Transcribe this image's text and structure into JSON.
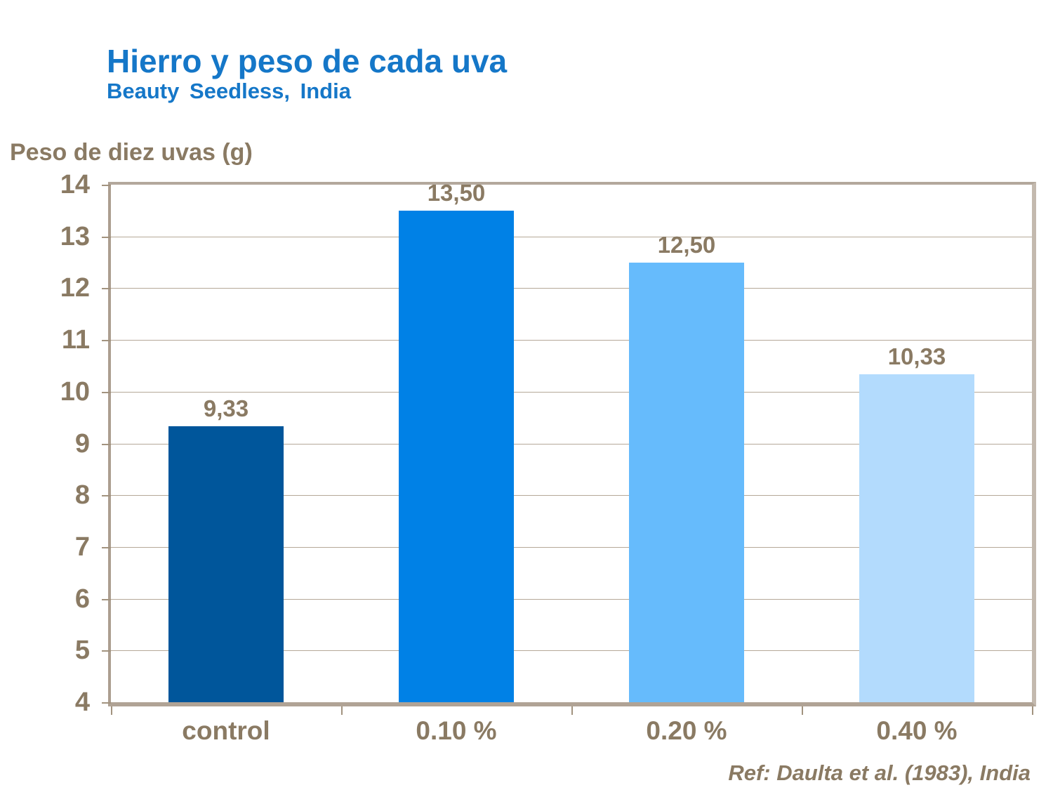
{
  "header": {
    "title": "Hierro y peso de cada uva",
    "subtitle": "Beauty Seedless, India"
  },
  "footer": {
    "reference": "Ref: Daulta et al. (1983), India"
  },
  "chart_data": {
    "type": "bar",
    "title": "Hierro y peso de cada uva",
    "subtitle": "Beauty Seedless, India",
    "ylabel": "Peso de diez uvas (g)",
    "xlabel": "",
    "categories": [
      "control",
      "0.10 %",
      "0.20 %",
      "0.40 %"
    ],
    "values": [
      9.33,
      13.5,
      12.5,
      10.33
    ],
    "value_labels": [
      "9,33",
      "13,50",
      "12,50",
      "10,33"
    ],
    "bar_colors": [
      "#00569B",
      "#0081E6",
      "#66BBFC",
      "#B3DBFD"
    ],
    "ylim": [
      4,
      14
    ],
    "ytick_interval": 1,
    "ytick_labels": [
      "4",
      "5",
      "6",
      "7",
      "8",
      "9",
      "10",
      "11",
      "12",
      "13",
      "14"
    ],
    "grid": true,
    "legend_position": "none",
    "footnote": "Ref: Daulta et al. (1983), India"
  },
  "colors": {
    "title_blue": "#1577C8",
    "text_brown": "#8A7A63",
    "frame_tan": "#B2A698",
    "gridline_tan": "#B5A898",
    "tick_tan": "#A2937F",
    "background": "#FFFFFF"
  }
}
